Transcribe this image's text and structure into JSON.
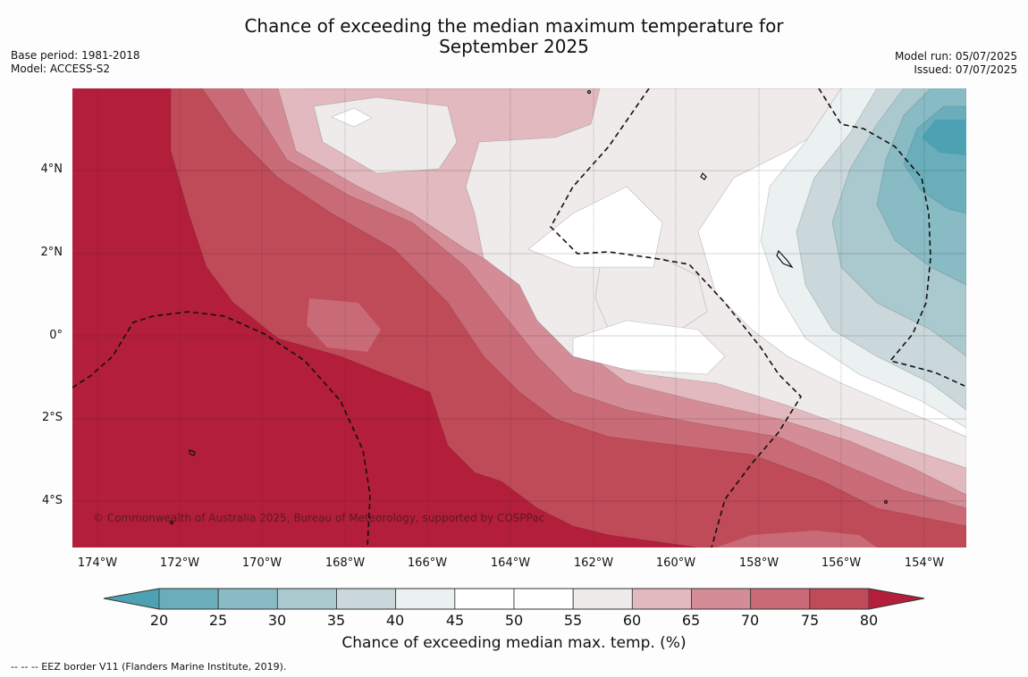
{
  "title_line1": "Chance of exceeding the median maximum temperature for",
  "title_line2": "September 2025",
  "meta_left": [
    "Base period: 1981-2018",
    "Model: ACCESS-S2"
  ],
  "meta_right": [
    "Model run: 05/07/2025",
    "Issued: 07/07/2025"
  ],
  "credit": "© Commonwealth of Australia 2025, Bureau of Meteorology, supported by COSPPac",
  "latitude_labels": [
    "4°N",
    "2°N",
    "0°",
    "2°S",
    "4°S"
  ],
  "longitude_labels": [
    "174°W",
    "172°W",
    "170°W",
    "168°W",
    "166°W",
    "164°W",
    "162°W",
    "160°W",
    "158°W",
    "156°W",
    "154°W"
  ],
  "colorbar": {
    "ticks": [
      "20",
      "25",
      "30",
      "35",
      "40",
      "45",
      "50",
      "55",
      "60",
      "65",
      "70",
      "75",
      "80"
    ],
    "colors": [
      "#4ca2b2",
      "#6aaebb",
      "#88bbc4",
      "#aac9cf",
      "#cad8dc",
      "#ebf0f1",
      "#ffffff",
      "#ffffff",
      "#eeebea",
      "#e1b9bf",
      "#d48d97",
      "#c96b77",
      "#bf4a58",
      "#b31e3a"
    ],
    "label": "Chance of exceeding median max. temp. (%)"
  },
  "footnote": "--  --  -- EEZ border V11 (Flanders Marine Institute, 2019)."
}
